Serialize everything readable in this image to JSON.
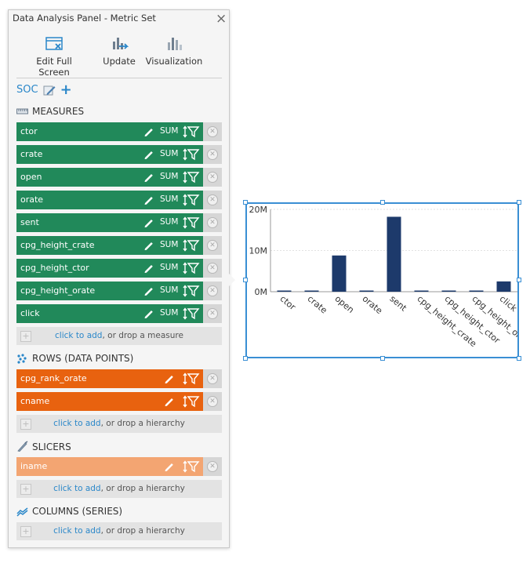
{
  "panel": {
    "title": "Data Analysis Panel - Metric Set",
    "close_glyph": "×"
  },
  "toolbar": {
    "edit_label": "Edit Full Screen",
    "update_label": "Update",
    "visualization_label": "Visualization"
  },
  "source": {
    "name": "SOC",
    "add_glyph": "+"
  },
  "measures": {
    "header": "MEASURES",
    "items": [
      {
        "name": "ctor",
        "agg": "SUM"
      },
      {
        "name": "crate",
        "agg": "SUM"
      },
      {
        "name": "open",
        "agg": "SUM"
      },
      {
        "name": "orate",
        "agg": "SUM"
      },
      {
        "name": "sent",
        "agg": "SUM"
      },
      {
        "name": "cpg_height_crate",
        "agg": "SUM"
      },
      {
        "name": "cpg_height_ctor",
        "agg": "SUM"
      },
      {
        "name": "cpg_height_orate",
        "agg": "SUM"
      },
      {
        "name": "click",
        "agg": "SUM"
      }
    ],
    "drop_link": "click to add",
    "drop_rest": ", or drop a measure"
  },
  "rows": {
    "header": "ROWS (DATA POINTS)",
    "items": [
      {
        "name": "cpg_rank_orate"
      },
      {
        "name": "cname"
      }
    ],
    "drop_link": "click to add",
    "drop_rest": ", or drop a hierarchy"
  },
  "slicers": {
    "header": "SLICERS",
    "items": [
      {
        "name": "iname"
      }
    ],
    "drop_link": "click to add",
    "drop_rest": ", or drop a hierarchy"
  },
  "columns": {
    "header": "COLUMNS (SERIES)",
    "drop_link": "click to add",
    "drop_rest": ", or drop a hierarchy"
  },
  "colors": {
    "measure": "#21895a",
    "row": "#e8620f",
    "slicer": "#f3a572",
    "bar": "#1d3a6b",
    "accent": "#2a87c9"
  },
  "chart_data": {
    "type": "bar",
    "categories": [
      "ctor",
      "crate",
      "open",
      "orate",
      "sent",
      "cpg_height_crate",
      "cpg_height_ctor",
      "cpg_height_orate",
      "click"
    ],
    "values": [
      5,
      12,
      8800000,
      2,
      18200000,
      0.5,
      0.3,
      0.2,
      2500000
    ],
    "ylim": [
      0,
      20000000
    ],
    "yticks": [
      0,
      10000000,
      20000000
    ],
    "ytick_labels": [
      "0M",
      "10M",
      "20M"
    ],
    "grid": true
  }
}
